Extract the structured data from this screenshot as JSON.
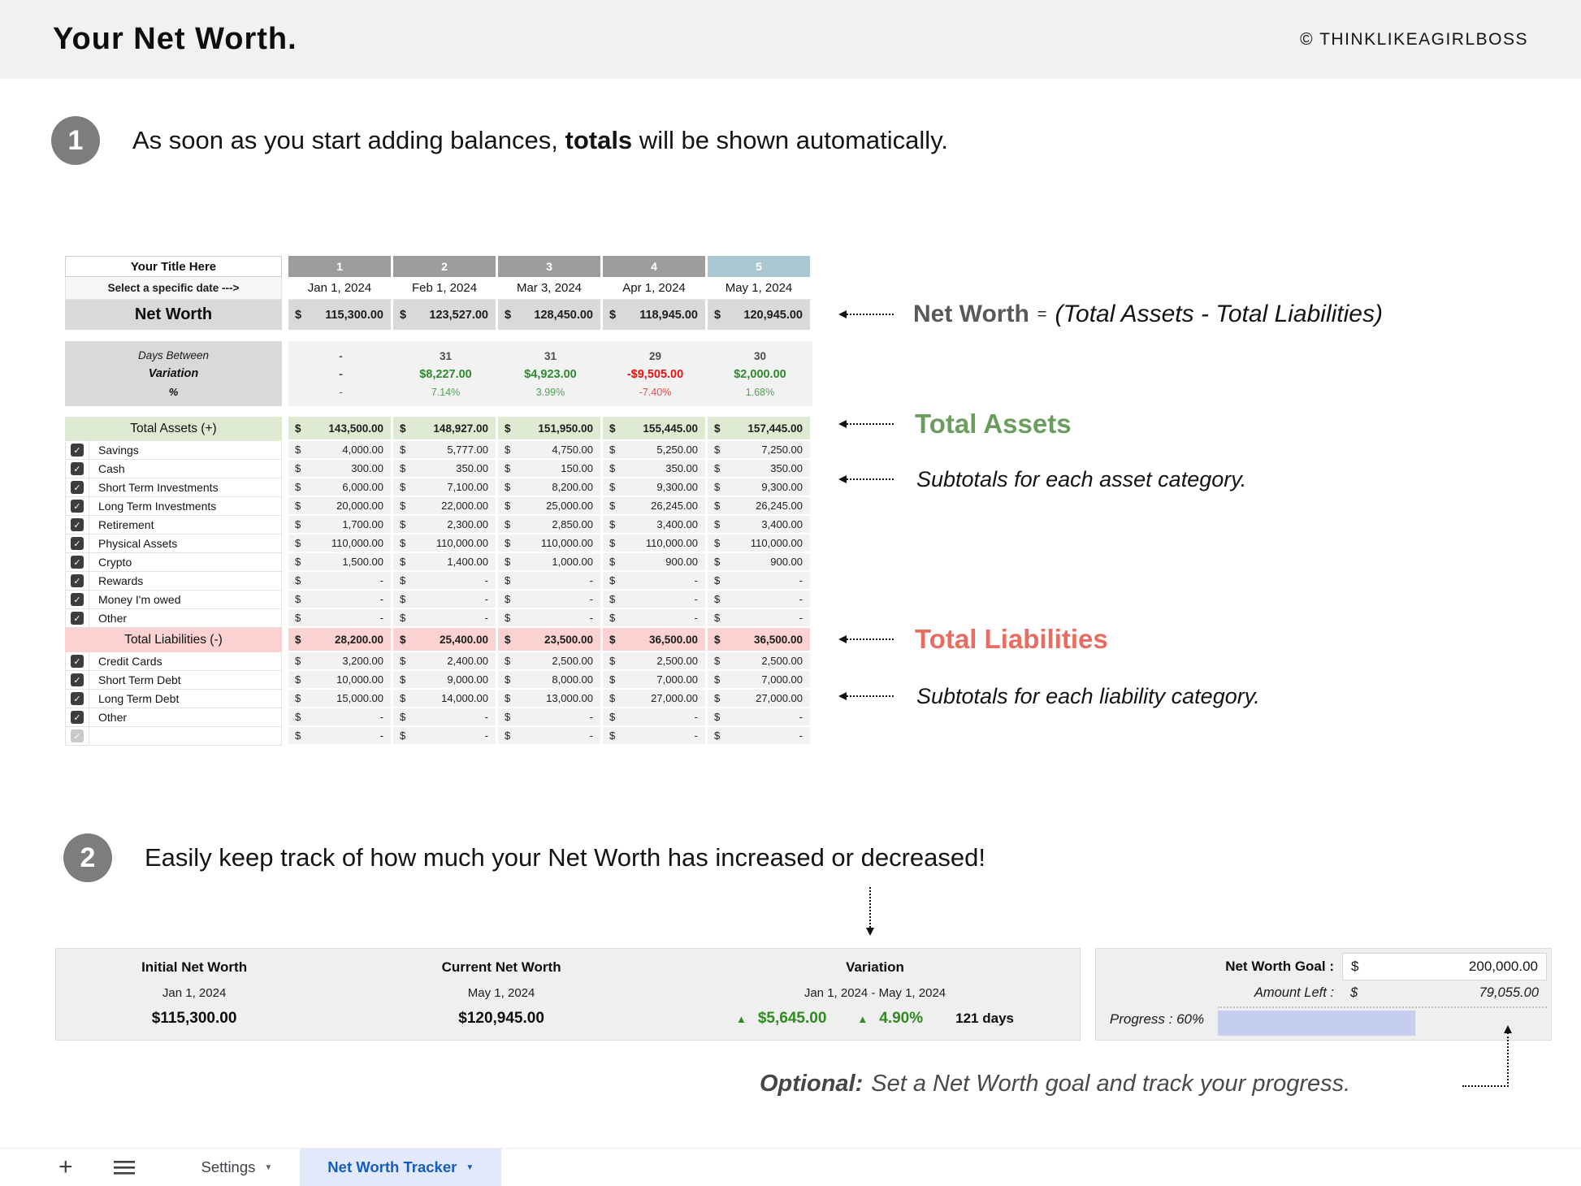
{
  "header": {
    "title": "Your Net Worth.",
    "copyright": "© THINKLIKEAGIRLBOSS"
  },
  "step1": {
    "number": "1",
    "text_before": "As soon as you start adding balances, ",
    "text_bold": "totals",
    "text_after": " will be shown automatically."
  },
  "step2": {
    "number": "2",
    "text": "Easily keep track of how much your Net Worth has increased or decreased!"
  },
  "sheet": {
    "title_cell": "Your Title Here",
    "date_hint": "Select a specific date --->",
    "col_numbers": [
      "1",
      "2",
      "3",
      "4",
      "5"
    ],
    "dates": [
      "Jan 1, 2024",
      "Feb 1, 2024",
      "Mar 3, 2024",
      "Apr 1, 2024",
      "May 1, 2024"
    ],
    "net_worth_label": "Net Worth",
    "net_worth": [
      "115,300.00",
      "123,527.00",
      "128,450.00",
      "118,945.00",
      "120,945.00"
    ],
    "days_between_label": "Days Between",
    "days_between": [
      "-",
      "31",
      "31",
      "29",
      "30"
    ],
    "variation_label": "Variation",
    "variation": [
      "-",
      "$8,227.00",
      "$4,923.00",
      "-$9,505.00",
      "$2,000.00"
    ],
    "percent_label": "%",
    "percent": [
      "-",
      "7.14%",
      "3.99%",
      "-7.40%",
      "1.68%"
    ],
    "assets_total_label": "Total Assets (+)",
    "assets_total": [
      "143,500.00",
      "148,927.00",
      "151,950.00",
      "155,445.00",
      "157,445.00"
    ],
    "asset_rows": [
      {
        "label": "Savings",
        "values": [
          "4,000.00",
          "5,777.00",
          "4,750.00",
          "5,250.00",
          "7,250.00"
        ]
      },
      {
        "label": "Cash",
        "values": [
          "300.00",
          "350.00",
          "150.00",
          "350.00",
          "350.00"
        ]
      },
      {
        "label": "Short Term Investments",
        "values": [
          "6,000.00",
          "7,100.00",
          "8,200.00",
          "9,300.00",
          "9,300.00"
        ]
      },
      {
        "label": "Long Term Investments",
        "values": [
          "20,000.00",
          "22,000.00",
          "25,000.00",
          "26,245.00",
          "26,245.00"
        ]
      },
      {
        "label": "Retirement",
        "values": [
          "1,700.00",
          "2,300.00",
          "2,850.00",
          "3,400.00",
          "3,400.00"
        ]
      },
      {
        "label": "Physical Assets",
        "values": [
          "110,000.00",
          "110,000.00",
          "110,000.00",
          "110,000.00",
          "110,000.00"
        ]
      },
      {
        "label": "Crypto",
        "values": [
          "1,500.00",
          "1,400.00",
          "1,000.00",
          "900.00",
          "900.00"
        ]
      },
      {
        "label": "Rewards",
        "values": [
          "-",
          "-",
          "-",
          "-",
          "-"
        ]
      },
      {
        "label": "Money I'm owed",
        "values": [
          "-",
          "-",
          "-",
          "-",
          "-"
        ]
      },
      {
        "label": "Other",
        "values": [
          "-",
          "-",
          "-",
          "-",
          "-"
        ]
      }
    ],
    "liabilities_total_label": "Total Liabilities (-)",
    "liabilities_total": [
      "28,200.00",
      "25,400.00",
      "23,500.00",
      "36,500.00",
      "36,500.00"
    ],
    "liability_rows": [
      {
        "label": "Credit Cards",
        "values": [
          "3,200.00",
          "2,400.00",
          "2,500.00",
          "2,500.00",
          "2,500.00"
        ]
      },
      {
        "label": "Short Term Debt",
        "values": [
          "10,000.00",
          "9,000.00",
          "8,000.00",
          "7,000.00",
          "7,000.00"
        ]
      },
      {
        "label": "Long Term Debt",
        "values": [
          "15,000.00",
          "14,000.00",
          "13,000.00",
          "27,000.00",
          "27,000.00"
        ]
      },
      {
        "label": "Other",
        "values": [
          "-",
          "-",
          "-",
          "-",
          "-"
        ]
      },
      {
        "label": "",
        "values": [
          "-",
          "-",
          "-",
          "-",
          "-"
        ],
        "disabled": true
      }
    ],
    "checkmark": "✓"
  },
  "annotations": {
    "net_worth_bold": "Net Worth",
    "net_worth_eq": "=",
    "net_worth_formula": "(Total Assets - Total Liabilities)",
    "total_assets": "Total Assets",
    "assets_sub": "Subtotals for each asset category.",
    "total_liabilities": "Total Liabilities",
    "liabilities_sub": "Subtotals for each liability category."
  },
  "summary": {
    "initial": {
      "label": "Initial Net Worth",
      "date": "Jan 1, 2024",
      "value": "$115,300.00"
    },
    "current": {
      "label": "Current Net Worth",
      "date": "May 1, 2024",
      "value": "$120,945.00"
    },
    "variation": {
      "label": "Variation",
      "range": "Jan 1, 2024 - May 1, 2024",
      "up_arrow": "▲",
      "amount": "$5,645.00",
      "percent": "4.90%",
      "days": "121 days"
    }
  },
  "goal": {
    "goal_label": "Net Worth Goal :",
    "currency": "$",
    "goal_value": "200,000.00",
    "left_label": "Amount Left :",
    "left_value": "79,055.00",
    "progress_label": "Progress : 60%",
    "progress_pct": 60
  },
  "optional_note": {
    "bold": "Optional:",
    "text": "Set a Net Worth goal and track your progress."
  },
  "tabs": {
    "plus_icon": "+",
    "settings": "Settings",
    "active": "Net Worth Tracker",
    "dropdown": "▼"
  },
  "colors": {
    "accent_green": "#6b9e5e",
    "accent_red": "#e86d60",
    "variation_green": "#2e8b2e",
    "variation_red": "#ea1010",
    "col5_teal": "#a9c8d1",
    "progress_lavender": "#c5cdf1",
    "tab_blue": "#155cc2"
  }
}
